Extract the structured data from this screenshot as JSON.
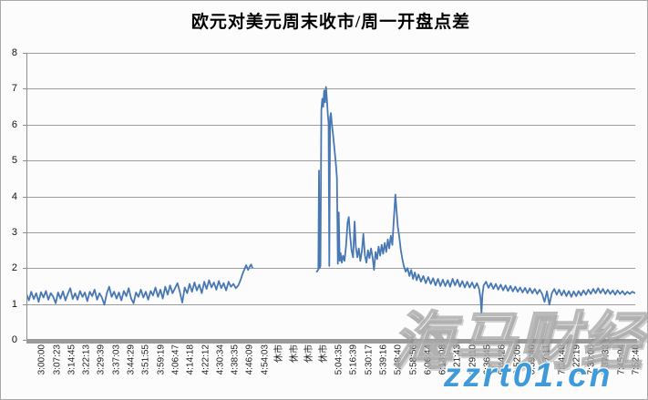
{
  "watermark": {
    "brand": "海马财经",
    "url": "zzrt01.cn",
    "url_color": "#3e9ad8"
  },
  "chart_data": {
    "type": "line",
    "title": "欧元对美元周末收市/周一开盘点差",
    "xlabel": "",
    "ylabel": "",
    "ylim": [
      0,
      8
    ],
    "y_ticks": [
      0,
      1,
      2,
      3,
      4,
      5,
      6,
      7,
      8
    ],
    "grid": "horizontal gridlines on",
    "legend": "none",
    "line_color": "#4878b4",
    "grid_color": "#9c9c9c",
    "axis_color": "#8f8f8f",
    "closed_market_label": "休市",
    "x_labels": [
      "3:00:00",
      "3:07:23",
      "3:14:45",
      "3:22:13",
      "3:29:39",
      "3:37:03",
      "3:44:29",
      "3:51:55",
      "3:59:19",
      "4:06:47",
      "4:14:18",
      "4:22:12",
      "4:30:34",
      "4:38:35",
      "4:46:09",
      "4:54:03",
      "休市",
      "休市",
      "休市",
      "休市",
      "5:04:35",
      "5:16:39",
      "5:30:17",
      "5:39:16",
      "5:48:40",
      "5:58:56",
      "6:06:44",
      "6:14:08",
      "6:21:43",
      "6:29:10",
      "6:36:45",
      "6:44:26",
      "6:52:05",
      "6:59:40",
      "7:07:11",
      "7:14:40",
      "7:22:19",
      "7:30:06",
      "7:37:33",
      "7:45:04",
      "7:52:40"
    ],
    "series": [
      {
        "x_unit": "percent_of_axis",
        "points": [
          [
            0,
            1.28
          ],
          [
            0.4,
            1.1
          ],
          [
            0.8,
            1.34
          ],
          [
            1.2,
            1.14
          ],
          [
            1.6,
            1.3
          ],
          [
            2,
            1.06
          ],
          [
            2.4,
            1.33
          ],
          [
            2.8,
            1.18
          ],
          [
            3.2,
            1.36
          ],
          [
            3.6,
            1.12
          ],
          [
            4,
            1.3
          ],
          [
            4.4,
            1.2
          ],
          [
            4.8,
            1.02
          ],
          [
            5.2,
            1.32
          ],
          [
            5.6,
            1.15
          ],
          [
            6,
            1.35
          ],
          [
            6.4,
            1.1
          ],
          [
            6.8,
            1.28
          ],
          [
            7.2,
            1.44
          ],
          [
            7.6,
            1.14
          ],
          [
            8,
            1.3
          ],
          [
            8.4,
            1.12
          ],
          [
            8.8,
            1.36
          ],
          [
            9.2,
            1.2
          ],
          [
            9.6,
            1.32
          ],
          [
            10,
            1.08
          ],
          [
            10.4,
            1.34
          ],
          [
            10.8,
            1.22
          ],
          [
            11.2,
            1.4
          ],
          [
            11.6,
            1.12
          ],
          [
            12,
            1.3
          ],
          [
            12.4,
            1.18
          ],
          [
            12.8,
            0.98
          ],
          [
            13.2,
            1.3
          ],
          [
            13.6,
            1.48
          ],
          [
            14,
            1.2
          ],
          [
            14.4,
            1.34
          ],
          [
            14.8,
            1.15
          ],
          [
            15.2,
            1.32
          ],
          [
            15.6,
            1.1
          ],
          [
            16,
            1.36
          ],
          [
            16.4,
            1.22
          ],
          [
            16.8,
            1.44
          ],
          [
            17.2,
            1.15
          ],
          [
            17.6,
            1.02
          ],
          [
            18,
            1.32
          ],
          [
            18.4,
            1.2
          ],
          [
            18.8,
            1.4
          ],
          [
            19.2,
            1.18
          ],
          [
            19.6,
            1.34
          ],
          [
            20,
            1.12
          ],
          [
            20.4,
            1.36
          ],
          [
            20.8,
            1.24
          ],
          [
            21.2,
            1.46
          ],
          [
            21.6,
            1.2
          ],
          [
            22,
            1.4
          ],
          [
            22.4,
            1.15
          ],
          [
            22.8,
            1.48
          ],
          [
            23.2,
            1.26
          ],
          [
            23.6,
            1.52
          ],
          [
            24,
            1.3
          ],
          [
            24.4,
            1.44
          ],
          [
            24.8,
            1.58
          ],
          [
            25.2,
            1.34
          ],
          [
            25.6,
            1.04
          ],
          [
            26,
            1.46
          ],
          [
            26.4,
            1.3
          ],
          [
            26.8,
            1.56
          ],
          [
            27.2,
            1.34
          ],
          [
            27.6,
            1.6
          ],
          [
            28,
            1.38
          ],
          [
            28.4,
            1.54
          ],
          [
            28.8,
            1.3
          ],
          [
            29.2,
            1.62
          ],
          [
            29.6,
            1.42
          ],
          [
            30,
            1.66
          ],
          [
            30.4,
            1.46
          ],
          [
            30.8,
            1.6
          ],
          [
            31.2,
            1.4
          ],
          [
            31.6,
            1.64
          ],
          [
            32,
            1.44
          ],
          [
            32.4,
            1.58
          ],
          [
            32.8,
            1.38
          ],
          [
            33.2,
            1.62
          ],
          [
            33.6,
            1.48
          ],
          [
            34,
            1.56
          ],
          [
            34.4,
            1.44
          ],
          [
            34.8,
            1.52
          ],
          [
            35.2,
            1.68
          ],
          [
            35.5,
            1.84
          ],
          [
            35.8,
            1.96
          ],
          [
            36.1,
            2.08
          ],
          [
            36.4,
            1.95
          ],
          [
            36.7,
            2.05
          ],
          [
            36.9,
            2.1
          ],
          [
            37.1,
            2.02
          ],
          [
            42,
            null
          ],
          [
            47.7,
            1.9
          ],
          [
            47.95,
            1.96
          ],
          [
            48.05,
            4.72
          ],
          [
            48.15,
            2.0
          ],
          [
            48.3,
            2.06
          ],
          [
            48.45,
            6.4
          ],
          [
            48.6,
            6.72
          ],
          [
            48.75,
            6.5
          ],
          [
            48.9,
            6.95
          ],
          [
            49.05,
            6.62
          ],
          [
            49.2,
            7.05
          ],
          [
            49.35,
            6.7
          ],
          [
            49.5,
            6.28
          ],
          [
            49.62,
            6.05
          ],
          [
            49.75,
            2.06
          ],
          [
            49.88,
            6.2
          ],
          [
            50.02,
            6.32
          ],
          [
            50.18,
            6.0
          ],
          [
            50.35,
            5.75
          ],
          [
            50.5,
            5.5
          ],
          [
            50.68,
            5.18
          ],
          [
            50.85,
            4.85
          ],
          [
            51.0,
            4.5
          ],
          [
            51.15,
            2.12
          ],
          [
            51.3,
            3.55
          ],
          [
            51.45,
            2.2
          ],
          [
            51.6,
            2.42
          ],
          [
            51.8,
            2.15
          ],
          [
            52.0,
            2.35
          ],
          [
            52.25,
            2.2
          ],
          [
            52.5,
            2.62
          ],
          [
            52.75,
            3.28
          ],
          [
            52.95,
            3.42
          ],
          [
            53.15,
            2.95
          ],
          [
            53.4,
            2.5
          ],
          [
            53.65,
            2.3
          ],
          [
            53.9,
            3.3
          ],
          [
            54.1,
            2.6
          ],
          [
            54.35,
            2.3
          ],
          [
            54.6,
            2.55
          ],
          [
            54.85,
            2.2
          ],
          [
            55.1,
            2.48
          ],
          [
            55.35,
            2.95
          ],
          [
            55.6,
            2.35
          ],
          [
            55.85,
            2.15
          ],
          [
            56.1,
            2.5
          ],
          [
            56.35,
            2.28
          ],
          [
            56.6,
            2.55
          ],
          [
            56.85,
            2.3
          ],
          [
            57.1,
            1.95
          ],
          [
            57.35,
            2.45
          ],
          [
            57.6,
            2.25
          ],
          [
            57.85,
            2.6
          ],
          [
            58.1,
            2.35
          ],
          [
            58.35,
            2.65
          ],
          [
            58.6,
            2.4
          ],
          [
            58.85,
            2.7
          ],
          [
            59.1,
            2.45
          ],
          [
            59.35,
            2.8
          ],
          [
            59.6,
            2.55
          ],
          [
            59.85,
            2.9
          ],
          [
            60.1,
            2.65
          ],
          [
            60.35,
            3.35
          ],
          [
            60.6,
            4.05
          ],
          [
            60.8,
            3.6
          ],
          [
            61.0,
            3.15
          ],
          [
            61.25,
            2.85
          ],
          [
            61.5,
            2.5
          ],
          [
            61.75,
            2.25
          ],
          [
            62.0,
            2.05
          ],
          [
            62.3,
            1.9
          ],
          [
            62.6,
            2.0
          ],
          [
            62.9,
            1.78
          ],
          [
            63.2,
            1.95
          ],
          [
            63.5,
            1.7
          ],
          [
            63.8,
            1.88
          ],
          [
            64.1,
            1.66
          ],
          [
            64.4,
            1.82
          ],
          [
            64.8,
            1.62
          ],
          [
            65.2,
            1.78
          ],
          [
            65.6,
            1.58
          ],
          [
            66,
            1.75
          ],
          [
            66.4,
            1.56
          ],
          [
            66.8,
            1.72
          ],
          [
            67.2,
            1.52
          ],
          [
            67.6,
            1.7
          ],
          [
            68,
            1.5
          ],
          [
            68.4,
            1.68
          ],
          [
            68.8,
            1.5
          ],
          [
            69.2,
            1.66
          ],
          [
            69.6,
            1.48
          ],
          [
            70,
            1.7
          ],
          [
            70.4,
            1.52
          ],
          [
            70.8,
            1.68
          ],
          [
            71.2,
            1.48
          ],
          [
            71.6,
            1.64
          ],
          [
            72,
            1.46
          ],
          [
            72.4,
            1.62
          ],
          [
            72.8,
            1.46
          ],
          [
            73.2,
            1.6
          ],
          [
            73.6,
            1.44
          ],
          [
            74,
            1.58
          ],
          [
            74.35,
            1.42
          ],
          [
            74.6,
            1.15
          ],
          [
            74.75,
            0.75
          ],
          [
            74.9,
            1.25
          ],
          [
            75.1,
            1.52
          ],
          [
            75.5,
            1.62
          ],
          [
            75.9,
            1.45
          ],
          [
            76.3,
            1.58
          ],
          [
            76.7,
            1.42
          ],
          [
            77.1,
            1.56
          ],
          [
            77.5,
            1.4
          ],
          [
            77.9,
            1.54
          ],
          [
            78.3,
            1.38
          ],
          [
            78.7,
            1.52
          ],
          [
            79.1,
            1.36
          ],
          [
            79.5,
            1.5
          ],
          [
            79.9,
            1.35
          ],
          [
            80.3,
            1.48
          ],
          [
            80.7,
            1.34
          ],
          [
            81.1,
            1.46
          ],
          [
            81.5,
            1.32
          ],
          [
            81.9,
            1.45
          ],
          [
            82.3,
            1.3
          ],
          [
            82.7,
            1.44
          ],
          [
            83.1,
            1.3
          ],
          [
            83.5,
            1.42
          ],
          [
            83.9,
            1.28
          ],
          [
            84.3,
            1.4
          ],
          [
            84.7,
            1.28
          ],
          [
            85.1,
            1.06
          ],
          [
            85.5,
            1.35
          ],
          [
            85.9,
            0.98
          ],
          [
            86.3,
            1.3
          ],
          [
            86.7,
            1.42
          ],
          [
            87.1,
            1.26
          ],
          [
            87.5,
            1.4
          ],
          [
            87.9,
            1.24
          ],
          [
            88.3,
            1.38
          ],
          [
            88.7,
            1.22
          ],
          [
            89.1,
            1.36
          ],
          [
            89.5,
            1.2
          ],
          [
            89.9,
            1.35
          ],
          [
            90.3,
            1.22
          ],
          [
            90.7,
            1.36
          ],
          [
            91.1,
            1.24
          ],
          [
            91.5,
            1.38
          ],
          [
            91.9,
            1.26
          ],
          [
            92.3,
            1.4
          ],
          [
            92.7,
            1.28
          ],
          [
            93.1,
            1.42
          ],
          [
            93.5,
            1.3
          ],
          [
            93.9,
            1.44
          ],
          [
            94.3,
            1.3
          ],
          [
            94.7,
            1.42
          ],
          [
            95.1,
            1.28
          ],
          [
            95.5,
            1.4
          ],
          [
            95.9,
            1.28
          ],
          [
            96.3,
            1.38
          ],
          [
            96.7,
            1.26
          ],
          [
            97.1,
            1.38
          ],
          [
            97.5,
            1.28
          ],
          [
            97.9,
            1.36
          ],
          [
            98.3,
            1.26
          ],
          [
            98.7,
            1.34
          ],
          [
            99.1,
            1.28
          ],
          [
            99.5,
            1.34
          ],
          [
            100,
            1.3
          ]
        ]
      }
    ]
  }
}
